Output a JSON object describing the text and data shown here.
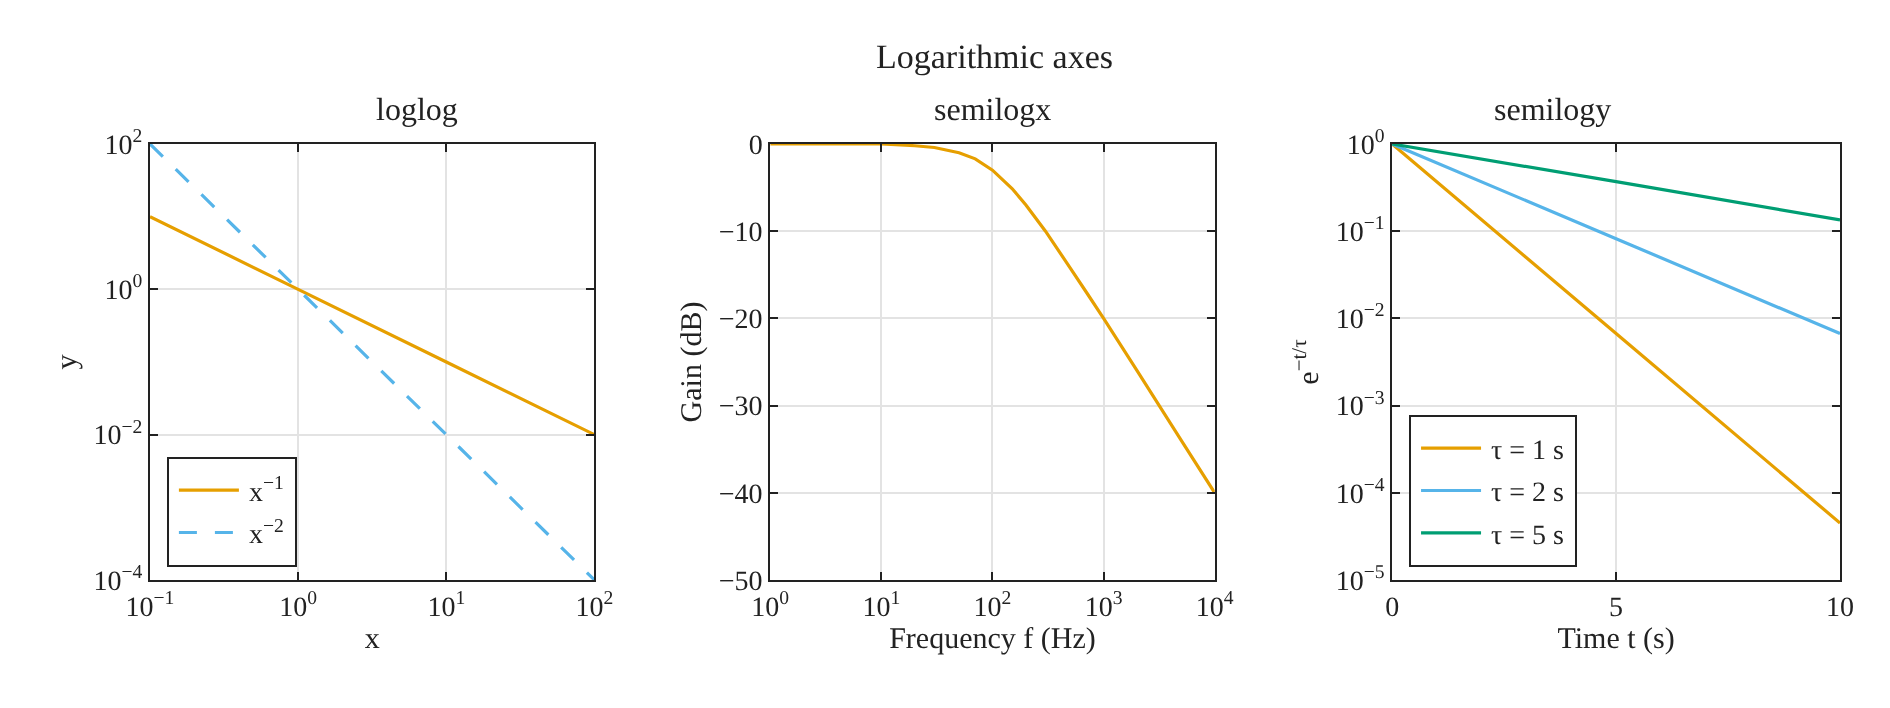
{
  "chart_data": [
    {
      "type": "line",
      "annotations": [
        "Logarithmic axes"
      ],
      "title": "loglog",
      "xlabel": "x",
      "ylabel": "y",
      "log": "xy",
      "grid": true,
      "legend": "bottom left",
      "xlim": [
        0.1,
        100
      ],
      "ylim": [
        0.0001,
        100
      ],
      "xticks": [
        {
          "value": 0.1,
          "label": "10$^{−1}$"
        },
        {
          "value": 1,
          "label": "10$^{0}$"
        },
        {
          "value": 10,
          "label": "10$^{1}$"
        },
        {
          "value": 100,
          "label": "10$^{2}$"
        }
      ],
      "yticks": [
        {
          "value": 0.0001,
          "label": "10$^{−4}$"
        },
        {
          "value": 0.01,
          "label": "10$^{−2}$"
        },
        {
          "value": 1,
          "label": "10$^{0}$"
        },
        {
          "value": 100,
          "label": "10$^{2}$"
        }
      ],
      "series": [
        {
          "name": "x$^{−1}$",
          "color": "#e69f00",
          "line_style": "solid",
          "x": [
            0.1,
            1,
            10,
            100
          ],
          "values": [
            10,
            1,
            0.1,
            0.01
          ]
        },
        {
          "name": "x$^{−2}$",
          "color": "#56b4e9",
          "line_style": "dashed",
          "x": [
            0.1,
            1,
            10,
            100
          ],
          "values": [
            100,
            1,
            0.01,
            0.0001
          ]
        }
      ]
    },
    {
      "type": "line",
      "title": "semilogx",
      "xlabel": "Frequency f (Hz)",
      "ylabel": "Gain (dB)",
      "log": "x",
      "grid": true,
      "xlim": [
        1,
        10000
      ],
      "ylim": [
        -50,
        0
      ],
      "xticks": [
        {
          "value": 1,
          "label": "10$^{0}$"
        },
        {
          "value": 10,
          "label": "10$^{1}$"
        },
        {
          "value": 100,
          "label": "10$^{2}$"
        },
        {
          "value": 1000,
          "label": "10$^{3}$"
        },
        {
          "value": 10000,
          "label": "10$^{4}$"
        }
      ],
      "yticks": [
        0,
        -10,
        -20,
        -30,
        -40,
        -50
      ],
      "series": [
        {
          "color": "#e69f00",
          "line_style": "solid",
          "x": [
            1,
            10,
            20,
            30,
            50,
            70,
            100,
            150,
            200,
            300,
            500,
            700,
            1000,
            2000,
            5000,
            10000
          ],
          "values": [
            0,
            0,
            -0.2,
            -0.4,
            -1,
            -1.7,
            -3,
            -5.1,
            -7,
            -10,
            -14.2,
            -17,
            -20,
            -26,
            -34,
            -40
          ]
        }
      ]
    },
    {
      "type": "line",
      "title": "semilogy",
      "xlabel": "Time t (s)",
      "ylabel": "e$^{−t/τ}$",
      "log": "y",
      "grid": true,
      "legend": "bottom left",
      "xlim": [
        0,
        10
      ],
      "ylim": [
        1e-05,
        1
      ],
      "xticks": [
        0,
        5,
        10
      ],
      "yticks": [
        {
          "value": 1e-05,
          "label": "10$^{−5}$"
        },
        {
          "value": 0.0001,
          "label": "10$^{−4}$"
        },
        {
          "value": 0.001,
          "label": "10$^{−3}$"
        },
        {
          "value": 0.01,
          "label": "10$^{−2}$"
        },
        {
          "value": 0.1,
          "label": "10$^{−1}$"
        },
        {
          "value": 1,
          "label": "10$^{0}$"
        }
      ],
      "series": [
        {
          "name": "τ = 1 s",
          "color": "#e69f00",
          "line_style": "solid",
          "x": [
            0,
            5,
            10
          ],
          "values": [
            1,
            0.0067,
            4.5e-05
          ]
        },
        {
          "name": "τ = 2 s",
          "color": "#56b4e9",
          "line_style": "solid",
          "x": [
            0,
            5,
            10
          ],
          "values": [
            1,
            0.082,
            0.0067
          ]
        },
        {
          "name": "τ = 5 s",
          "color": "#009e73",
          "line_style": "solid",
          "x": [
            0,
            5,
            10
          ],
          "values": [
            1,
            0.37,
            0.135
          ]
        }
      ]
    }
  ]
}
